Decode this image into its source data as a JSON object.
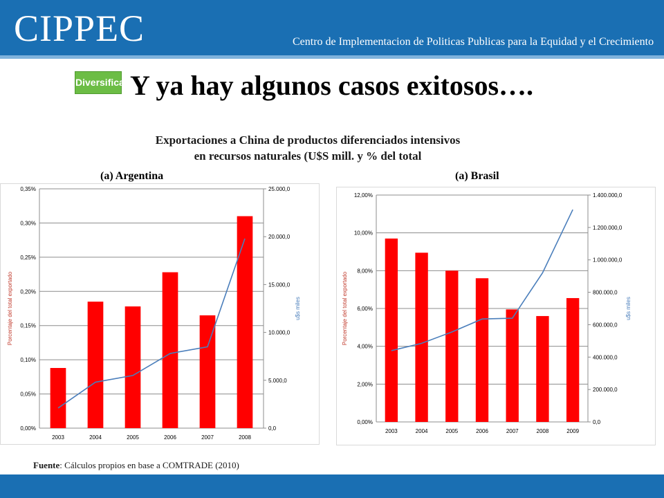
{
  "header": {
    "logo": "CIPPEC",
    "tagline": "Centro de Implementacion de Politicas Publicas para la Equidad y el Crecimiento"
  },
  "badge": "Diversificación",
  "title": "Y ya hay algunos casos exitosos….",
  "subtitle_line1": "Exportaciones a China de productos diferenciados  intensivos",
  "subtitle_line2": "en recursos naturales (U$S mill. y % del total",
  "panel_a_label": "(a)   Argentina",
  "panel_b_label": "(a)   Brasil",
  "source_label": "Fuente",
  "source_text": ": Cálculos propios en base a COMTRADE (2010)",
  "colors": {
    "bar": "#ff0000",
    "line": "#4a7ebb",
    "header": "#1a6fb3",
    "badge": "#6cbd45"
  },
  "chart_data": [
    {
      "type": "bar",
      "name": "Argentina",
      "categories": [
        "2003",
        "2004",
        "2005",
        "2006",
        "2007",
        "2008"
      ],
      "series": [
        {
          "type": "bar",
          "axis": "left",
          "values": [
            0.088,
            0.185,
            0.178,
            0.228,
            0.165,
            0.31
          ]
        },
        {
          "type": "line",
          "axis": "right",
          "values": [
            2100,
            4800,
            5500,
            7800,
            8500,
            19800
          ]
        }
      ],
      "ylabel": "Porcentaje del total exportado",
      "y2label": "u$s miles",
      "ylim": [
        0,
        0.35
      ],
      "y2lim": [
        0,
        25000
      ],
      "yticks": [
        "0,00%",
        "0,05%",
        "0,10%",
        "0,15%",
        "0,20%",
        "0,25%",
        "0,30%",
        "0,35%"
      ],
      "y2ticks": [
        "0,0",
        "5.000,0",
        "10.000,0",
        "15.000,0",
        "20.000,0",
        "25.000,0"
      ],
      "grid": true
    },
    {
      "type": "bar",
      "name": "Brasil",
      "categories": [
        "2003",
        "2004",
        "2005",
        "2006",
        "2007",
        "2008",
        "2009"
      ],
      "series": [
        {
          "type": "bar",
          "axis": "left",
          "values": [
            9.7,
            8.95,
            8.0,
            7.6,
            5.95,
            5.6,
            6.55
          ]
        },
        {
          "type": "line",
          "axis": "right",
          "values": [
            440000,
            485000,
            555000,
            635000,
            640000,
            920000,
            1310000
          ]
        }
      ],
      "ylabel": "Porcentaje del total exportado",
      "y2label": "u$s miles",
      "ylim": [
        0,
        12
      ],
      "y2lim": [
        0,
        1400000
      ],
      "yticks": [
        "0,00%",
        "2,00%",
        "4,00%",
        "6,00%",
        "8,00%",
        "10,00%",
        "12,00%"
      ],
      "y2ticks": [
        "0,0",
        "200.000,0",
        "400.000,0",
        "600.000,0",
        "800.000,0",
        "1.000.000,0",
        "1.200.000,0",
        "1.400.000,0"
      ],
      "grid": true
    }
  ]
}
